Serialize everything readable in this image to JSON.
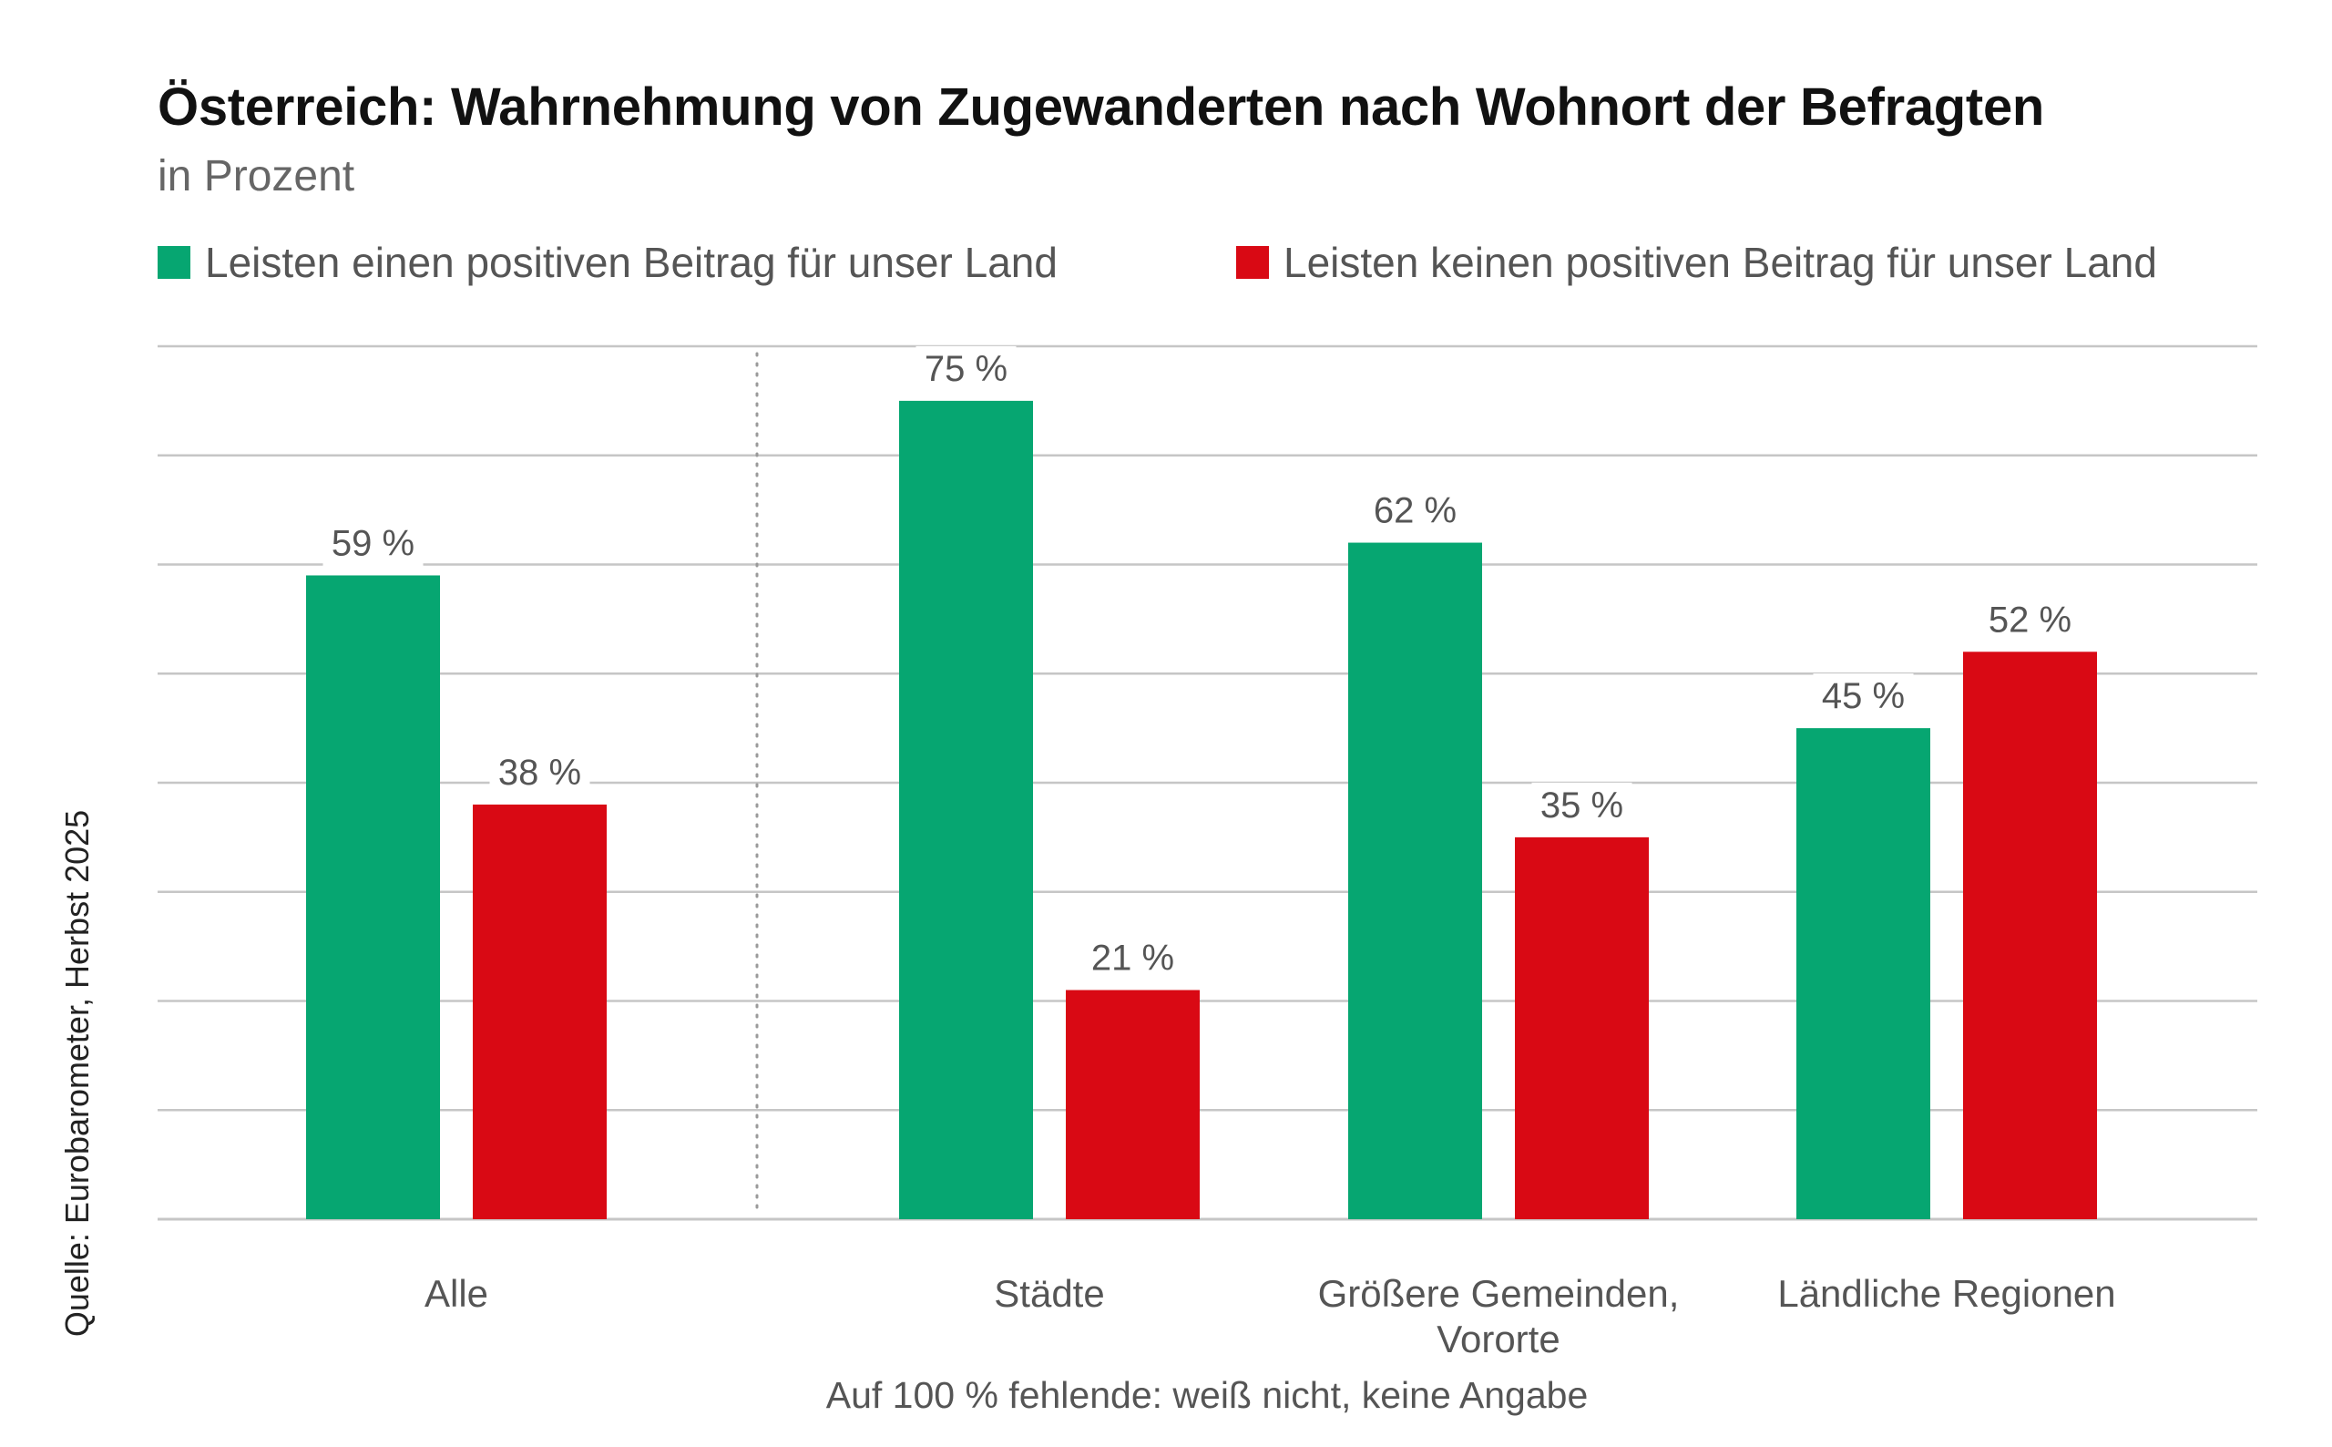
{
  "chart_data": {
    "type": "bar",
    "title": "Österreich: Wahrnehmung von Zugewanderten nach Wohnort der Befragten",
    "subtitle": "in Prozent",
    "categories": [
      [
        "Alle"
      ],
      [
        "Städte"
      ],
      [
        "Größere Gemeinden,",
        "Vororte"
      ],
      [
        "Ländliche Regionen"
      ]
    ],
    "series": [
      {
        "name": "Leisten einen positiven Beitrag für unser Land",
        "color": "#06a671",
        "values": [
          59,
          75,
          62,
          45
        ],
        "labels": [
          "59 %",
          "75 %",
          "62 %",
          "45 %"
        ]
      },
      {
        "name": "Leisten keinen positiven Beitrag für unser Land",
        "color": "#d90914",
        "values": [
          38,
          21,
          35,
          52
        ],
        "labels": [
          "38 %",
          "21 %",
          "35 %",
          "52 %"
        ]
      }
    ],
    "ylim": [
      0,
      80
    ],
    "ytick_step": 10,
    "grid": true,
    "gridColor": "#c6c6c6",
    "separator_after_category": 0,
    "legend_position": "top-left",
    "xlabel": "",
    "ylabel": "",
    "source": "Quelle: Eurobarometer, Herbst 2025",
    "footnote": "Auf 100 % fehlende: weiß nicht, keine Angabe"
  }
}
